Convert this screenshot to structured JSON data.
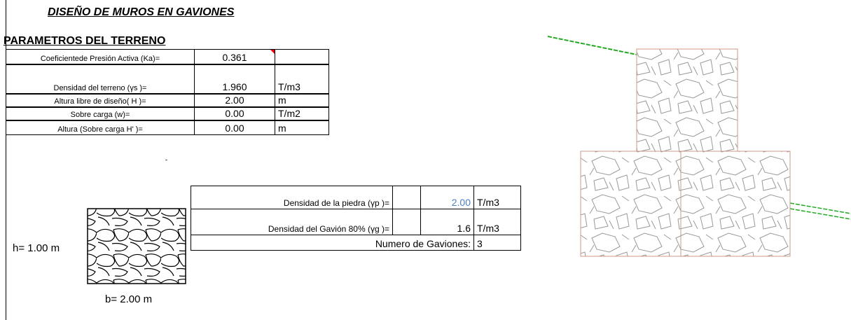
{
  "header": {
    "title": "DISEÑO DE MUROS EN GAVIONES",
    "section": "PARAMETROS DEL TERRENO"
  },
  "parameters": {
    "rows": [
      {
        "label": "Coeficientede Presión Activa (Ka)=",
        "value": "0.361"
      },
      {
        "label": "Densidad del terreno  (γs )=",
        "value": "1.960",
        "unit": "T/m3"
      },
      {
        "label": "Altura libre de diseño( H )=",
        "value": "2.00",
        "unit": "m"
      },
      {
        "label": "Sobre carga (w)=",
        "value": "0.00",
        "unit": "T/m2"
      },
      {
        "label": "Altura (Sobre carga H' )=",
        "value": "0.00",
        "unit": "m"
      }
    ]
  },
  "stone": {
    "rows": [
      {
        "label": "Densidad de la piedra  (γp )=",
        "value": "2.00",
        "unit": "T/m3"
      },
      {
        "label": "Densidad del Gavión 80%  (γg )=",
        "value": "1.6",
        "unit": "T/m3"
      }
    ],
    "count": {
      "label": "Numero de Gaviones:",
      "value": "3"
    }
  },
  "gabion": {
    "height": "h= 1.00 m",
    "width": "b= 2.00 m"
  }
}
